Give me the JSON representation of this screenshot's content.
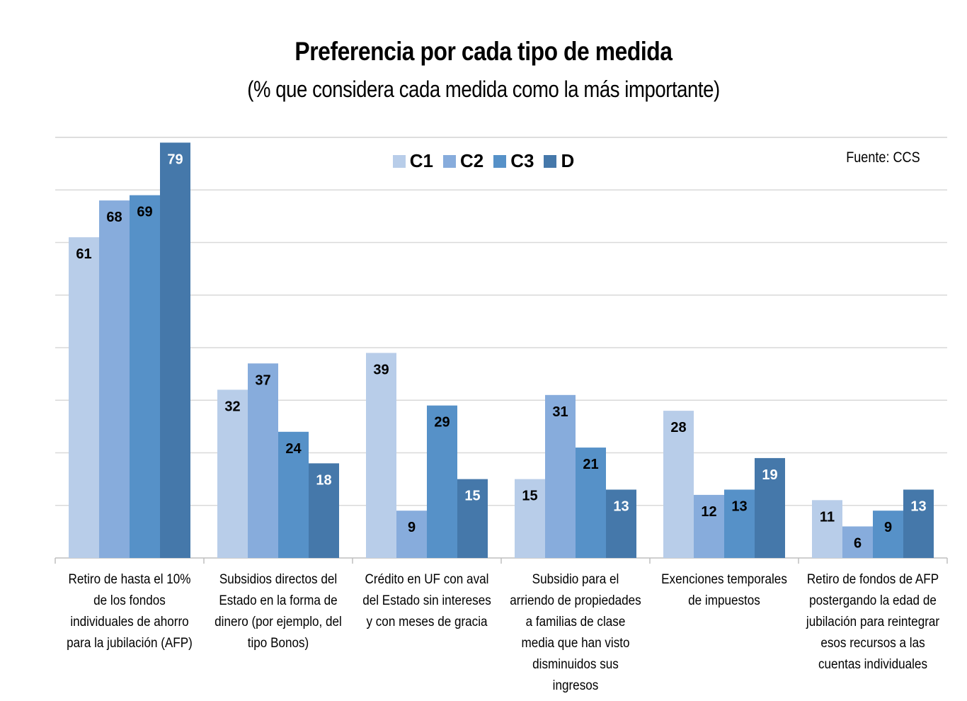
{
  "chart_data": {
    "type": "bar",
    "title": "Preferencia por cada tipo de medida",
    "subtitle": "(% que considera cada medida como la más importante)",
    "source": "Fuente: CCS",
    "xlabel": "",
    "ylabel": "",
    "ylim": [
      0,
      80
    ],
    "grid": true,
    "legend_position": "top-center",
    "categories": [
      "Retiro de hasta el 10% de los fondos individuales de ahorro para la jubilación (AFP)",
      "Subsidios directos del Estado en la forma de dinero (por ejemplo, del tipo Bonos)",
      "Crédito en UF con aval del Estado sin intereses y con meses de gracia",
      "Subsidio para el arriendo de propiedades a familias de clase media que han visto disminuidos sus ingresos",
      "Exenciones temporales de impuestos",
      "Retiro de fondos de AFP postergando la edad de jubilación para reintegrar esos recursos a las cuentas individuales"
    ],
    "series": [
      {
        "name": "C1",
        "color": "#b8cde9",
        "values": [
          61,
          32,
          39,
          15,
          28,
          11
        ]
      },
      {
        "name": "C2",
        "color": "#87acdc",
        "values": [
          68,
          37,
          9,
          31,
          12,
          6
        ]
      },
      {
        "name": "C3",
        "color": "#5691c8",
        "values": [
          69,
          24,
          29,
          21,
          13,
          9
        ]
      },
      {
        "name": "D",
        "color": "#4578aa",
        "values": [
          79,
          18,
          15,
          13,
          19,
          13
        ]
      }
    ],
    "label_colors": {
      "C1": "#000000",
      "C2": "#000000",
      "C3": "#000000",
      "D": "#ffffff"
    }
  }
}
